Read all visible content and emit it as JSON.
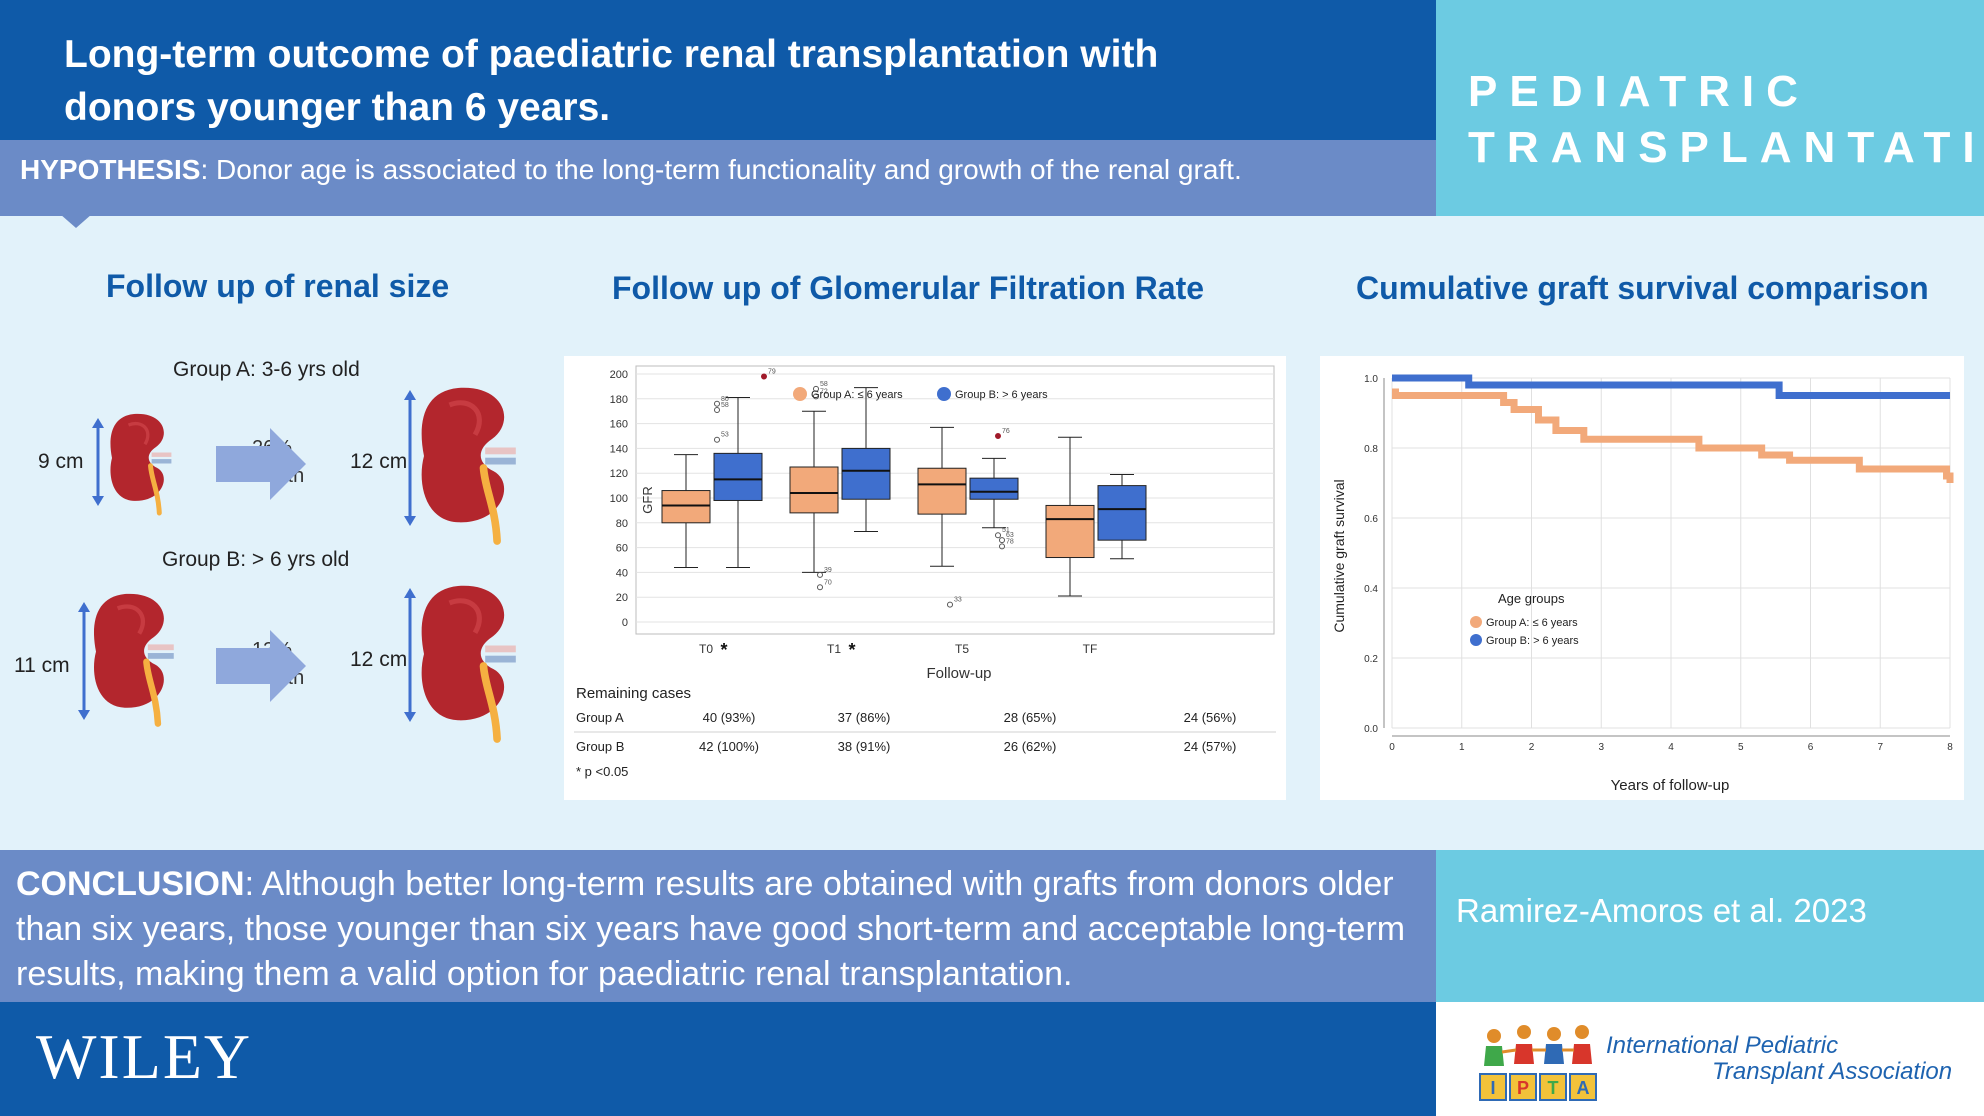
{
  "header": {
    "title_line1": "Long-term outcome of paediatric renal transplantation with",
    "title_line2": "donors younger than 6 years.",
    "journal_line1": "PEDIATRIC",
    "journal_line2": "TRANSPLANTATION",
    "hypothesis_label": "HYPOTHESIS",
    "hypothesis_text": ": Donor age is associated to the long-term functionality and growth of the renal graft."
  },
  "sections": {
    "renal_size_title": "Follow up of renal size",
    "gfr_title": "Follow up of Glomerular Filtration Rate",
    "survival_title": "Cumulative graft survival comparison"
  },
  "renal_size": {
    "group_a_label": "Group A: 3-6 yrs old",
    "group_a_before": "9 cm",
    "group_a_pct": "26%",
    "group_a_growth": "Growth",
    "group_a_after": "12 cm",
    "group_b_label": "Group B:     > 6 yrs old",
    "group_b_before": "11 cm",
    "group_b_pct": "13%",
    "group_b_growth": "Growth",
    "group_b_after": "12 cm"
  },
  "colors": {
    "group_a": "#f2a97a",
    "group_b": "#3f6fce",
    "kidney": "#b3262d",
    "ureter": "#f5b041",
    "arrow": "#8fa8dc",
    "measure": "#3f6fce"
  },
  "chart_data": [
    {
      "type": "box",
      "ylabel": "GFR",
      "xlabel": "Follow-up",
      "ylim": [
        0,
        200
      ],
      "yticks": [
        "0",
        "20",
        "40",
        "60",
        "80",
        "100",
        "120",
        "140",
        "160",
        "180",
        "200"
      ],
      "categories": [
        "T0",
        "T1",
        "T5",
        "TF"
      ],
      "significance_marks": [
        "*",
        "*",
        "",
        ""
      ],
      "legend": [
        "Group A: ≤ 6 years",
        "Group B: > 6 years"
      ],
      "legend_position": "top-right",
      "series": [
        {
          "name": "Group A: ≤ 6 years",
          "boxes": [
            {
              "min": 44,
              "q1": 80,
              "median": 94,
              "q3": 106,
              "max": 135
            },
            {
              "min": 40,
              "q1": 88,
              "median": 104,
              "q3": 125,
              "max": 170
            },
            {
              "min": 45,
              "q1": 87,
              "median": 111,
              "q3": 124,
              "max": 157
            },
            {
              "min": 21,
              "q1": 52,
              "median": 83,
              "q3": 94,
              "max": 149
            }
          ]
        },
        {
          "name": "Group B: > 6 years",
          "boxes": [
            {
              "min": 44,
              "q1": 98,
              "median": 115,
              "q3": 136,
              "max": 181
            },
            {
              "min": 73,
              "q1": 99,
              "median": 122,
              "q3": 140,
              "max": 189
            },
            {
              "min": 76,
              "q1": 99,
              "median": 105,
              "q3": 116,
              "max": 132
            },
            {
              "min": 51,
              "q1": 66,
              "median": 91,
              "q3": 110,
              "max": 119
            }
          ]
        }
      ],
      "outlier_labels": [
        "80",
        "58",
        "53",
        "79",
        "58",
        "72",
        "39",
        "70",
        "33",
        "76",
        "51",
        "63",
        "78"
      ],
      "remaining_cases": {
        "title": "Remaining cases",
        "rows": [
          {
            "label": "Group A",
            "values": [
              "40 (93%)",
              "37 (86%)",
              "28 (65%)",
              "24 (56%)"
            ]
          },
          {
            "label": "Group B",
            "values": [
              "42 (100%)",
              "38 (91%)",
              "26 (62%)",
              "24 (57%)"
            ]
          }
        ],
        "footnote": "* p <0.05"
      }
    },
    {
      "type": "line",
      "subtype": "kaplan-meier step",
      "ylabel": "Cumulative graft survival",
      "xlabel": "Years of follow-up",
      "xlim": [
        0,
        8
      ],
      "ylim": [
        0,
        1.0
      ],
      "xticks": [
        "0",
        "1",
        "2",
        "3",
        "4",
        "5",
        "6",
        "7",
        "8"
      ],
      "yticks": [
        "0.0",
        "0.2",
        "0.4",
        "0.6",
        "0.8",
        "1.0"
      ],
      "legend_title": "Age groups",
      "legend": [
        "Group A: ≤ 6 years",
        "Group B: > 6 years"
      ],
      "legend_position": "center-left",
      "series": [
        {
          "name": "Group A: ≤ 6 years",
          "x": [
            0,
            0.05,
            1.6,
            1.75,
            2.1,
            2.35,
            2.75,
            3.3,
            3.9,
            4.4,
            5.3,
            5.7,
            6.0,
            6.7,
            7.2,
            7.95,
            8.0
          ],
          "y": [
            0.96,
            0.95,
            0.93,
            0.91,
            0.88,
            0.85,
            0.825,
            0.825,
            0.825,
            0.8,
            0.78,
            0.765,
            0.765,
            0.74,
            0.74,
            0.72,
            0.7
          ]
        },
        {
          "name": "Group B: > 6 years",
          "x": [
            0,
            1.1,
            5.55,
            8.0
          ],
          "y": [
            1.0,
            0.98,
            0.95,
            0.95
          ]
        }
      ]
    }
  ],
  "conclusion": {
    "label": "CONCLUSION",
    "text": ": Although better long-term results are obtained with grafts from donors older than six years, those younger than six years have good short-term and acceptable long-term results, making them a valid option for paediatric renal transplantation."
  },
  "citation": "Ramirez-Amoros et al. 2023",
  "footer": {
    "publisher": "WILEY",
    "ipta_letters": [
      "I",
      "P",
      "T",
      "A"
    ],
    "ipta_line1": "International Pediatric",
    "ipta_line2": "Transplant Association"
  }
}
